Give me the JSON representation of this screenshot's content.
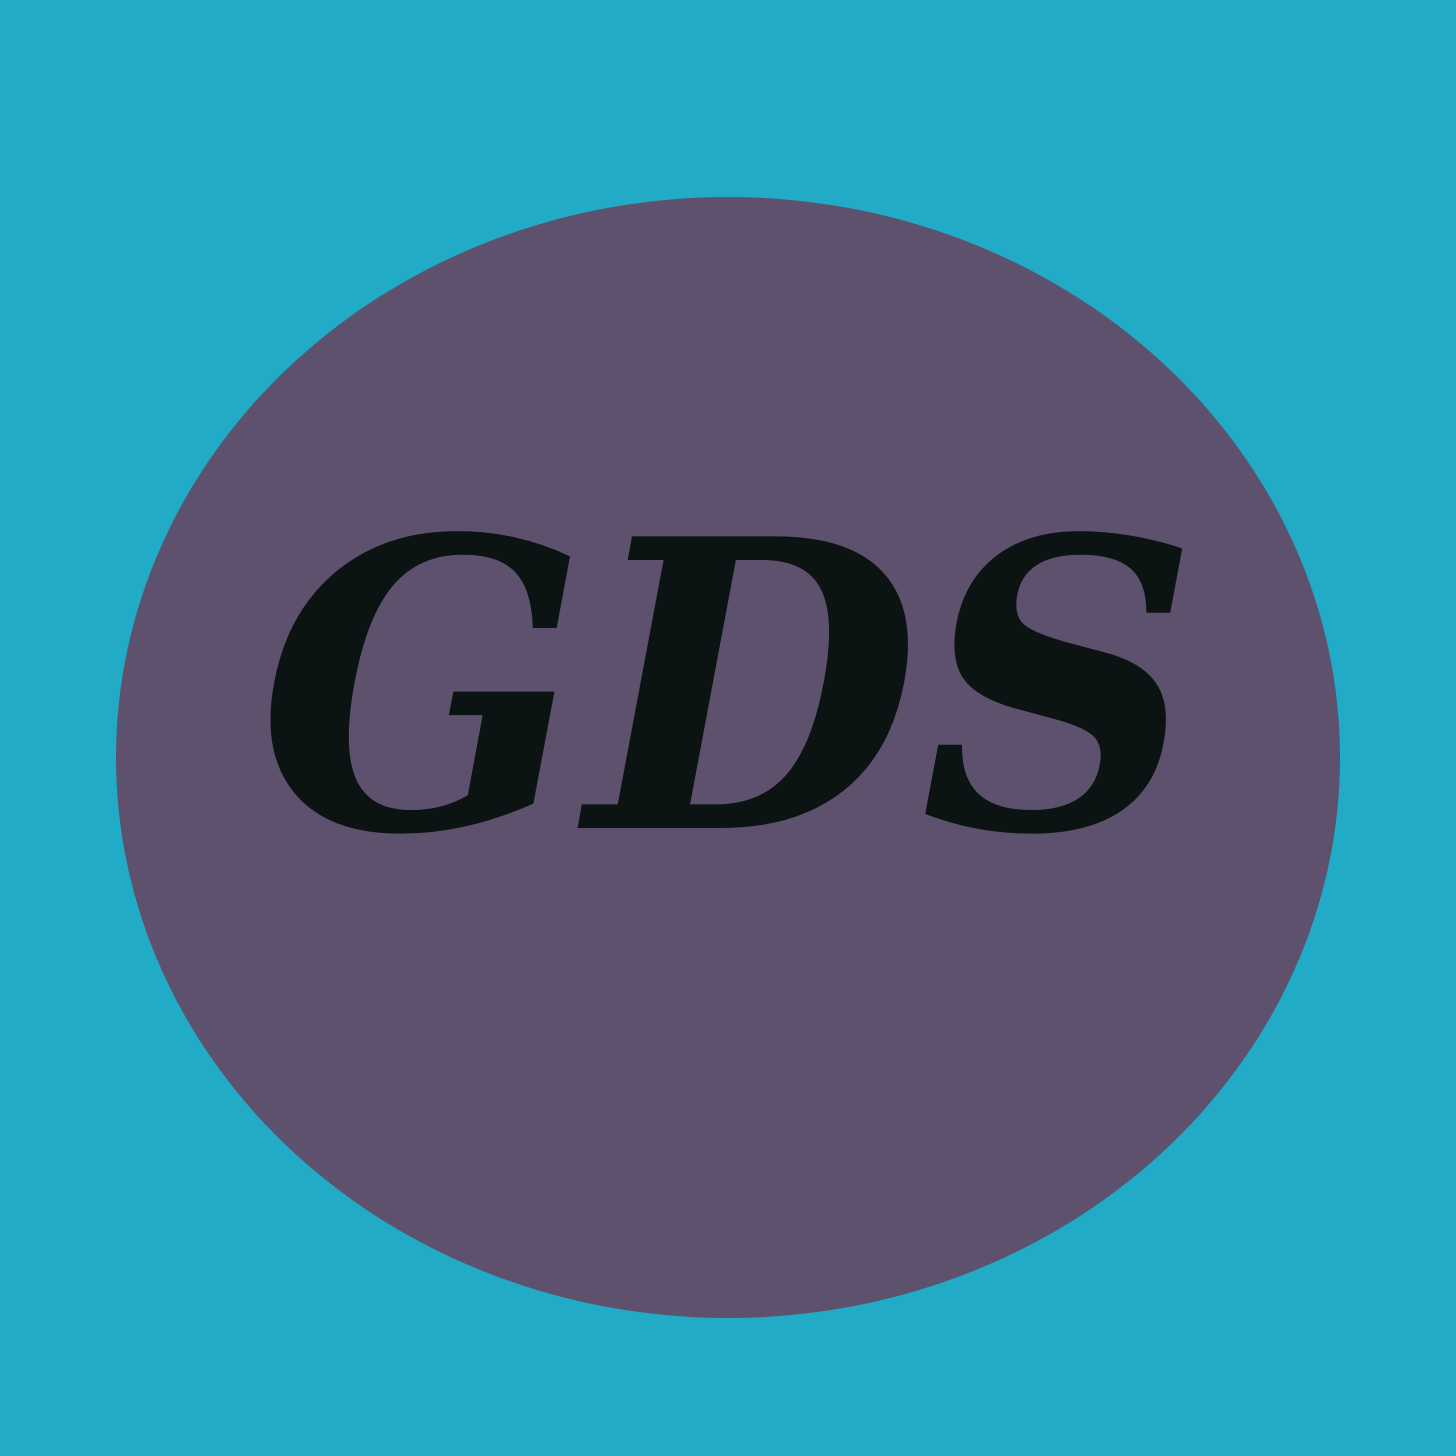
{
  "logo": {
    "monogram": "GDS",
    "background_color": "#21abc6",
    "oval_color": "#5e516d",
    "text_color": "#0b1413"
  }
}
